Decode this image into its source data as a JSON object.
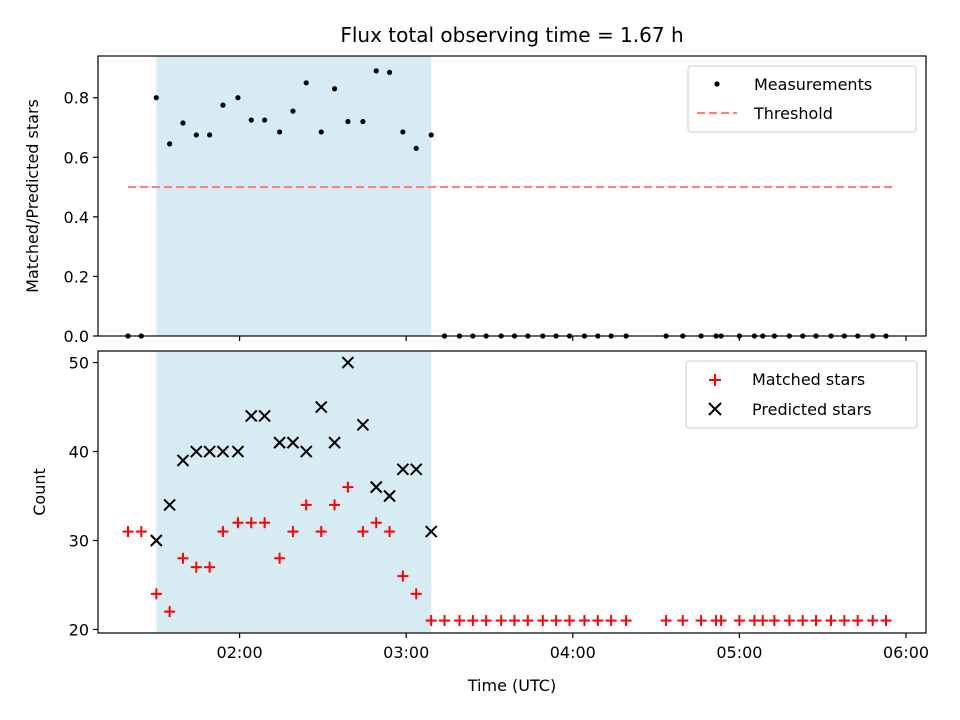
{
  "chart_data": {
    "title": "Flux total observing time = 1.67 h",
    "xlabel": "Time (UTC)",
    "x_unit": "hours UTC",
    "xlim": [
      1.15,
      6.12
    ],
    "x_ticks": [
      {
        "value": 2.0,
        "label": "02:00"
      },
      {
        "value": 3.0,
        "label": "03:00"
      },
      {
        "value": 4.0,
        "label": "04:00"
      },
      {
        "value": 5.0,
        "label": "05:00"
      },
      {
        "value": 6.0,
        "label": "06:00"
      }
    ],
    "shaded_span": {
      "x0": 1.5,
      "x1": 3.15,
      "color": "#add8e6"
    },
    "top": {
      "type": "scatter",
      "ylabel": "Matched/Predicted stars",
      "ylim": [
        0.0,
        0.94
      ],
      "y_ticks": [
        {
          "value": 0.0,
          "label": "0.0"
        },
        {
          "value": 0.2,
          "label": "0.2"
        },
        {
          "value": 0.4,
          "label": "0.4"
        },
        {
          "value": 0.6,
          "label": "0.6"
        },
        {
          "value": 0.8,
          "label": "0.8"
        }
      ],
      "legend": {
        "placement": "upper right",
        "entries": [
          {
            "label": "Measurements",
            "marker": "dot",
            "color": "#000000"
          },
          {
            "label": "Threshold",
            "marker": "dashed-line",
            "color": "#ff7f7f"
          }
        ]
      },
      "threshold": {
        "name": "Threshold",
        "value": 0.5,
        "x0": 1.33,
        "x1": 5.92,
        "color": "#ff7f7f"
      },
      "series": [
        {
          "name": "Measurements",
          "color": "#000000",
          "points": [
            [
              1.33,
              0
            ],
            [
              1.41,
              0
            ],
            [
              1.5,
              0.8
            ],
            [
              1.58,
              0.645
            ],
            [
              1.66,
              0.715
            ],
            [
              1.74,
              0.675
            ],
            [
              1.82,
              0.675
            ],
            [
              1.9,
              0.775
            ],
            [
              1.99,
              0.8
            ],
            [
              2.07,
              0.725
            ],
            [
              2.15,
              0.725
            ],
            [
              2.24,
              0.685
            ],
            [
              2.32,
              0.755
            ],
            [
              2.4,
              0.85
            ],
            [
              2.49,
              0.685
            ],
            [
              2.57,
              0.83
            ],
            [
              2.65,
              0.72
            ],
            [
              2.74,
              0.72
            ],
            [
              2.82,
              0.89
            ],
            [
              2.9,
              0.885
            ],
            [
              2.98,
              0.685
            ],
            [
              3.06,
              0.63
            ],
            [
              3.15,
              0.675
            ],
            [
              3.23,
              0
            ],
            [
              3.32,
              0
            ],
            [
              3.4,
              0
            ],
            [
              3.48,
              0
            ],
            [
              3.57,
              0
            ],
            [
              3.65,
              0
            ],
            [
              3.73,
              0
            ],
            [
              3.82,
              0
            ],
            [
              3.9,
              0
            ],
            [
              3.98,
              0
            ],
            [
              4.07,
              0
            ],
            [
              4.15,
              0
            ],
            [
              4.23,
              0
            ],
            [
              4.32,
              0
            ],
            [
              4.56,
              0
            ],
            [
              4.66,
              0
            ],
            [
              4.77,
              0
            ],
            [
              4.86,
              0
            ],
            [
              4.89,
              0
            ],
            [
              5.0,
              0
            ],
            [
              5.09,
              0
            ],
            [
              5.14,
              0
            ],
            [
              5.21,
              0
            ],
            [
              5.3,
              0
            ],
            [
              5.38,
              0
            ],
            [
              5.46,
              0
            ],
            [
              5.55,
              0
            ],
            [
              5.63,
              0
            ],
            [
              5.71,
              0
            ],
            [
              5.8,
              0
            ],
            [
              5.88,
              0
            ]
          ]
        }
      ]
    },
    "bottom": {
      "type": "scatter",
      "ylabel": "Count",
      "ylim": [
        19.6,
        51.3
      ],
      "y_ticks": [
        {
          "value": 20,
          "label": "20"
        },
        {
          "value": 30,
          "label": "30"
        },
        {
          "value": 40,
          "label": "40"
        },
        {
          "value": 50,
          "label": "50"
        }
      ],
      "legend": {
        "placement": "upper right",
        "entries": [
          {
            "label": "Matched stars",
            "marker": "plus",
            "color": "#ff0000"
          },
          {
            "label": "Predicted stars",
            "marker": "x",
            "color": "#000000"
          }
        ]
      },
      "series": [
        {
          "name": "Matched stars",
          "marker": "plus",
          "color": "#ff0000",
          "points": [
            [
              1.33,
              31
            ],
            [
              1.41,
              31
            ],
            [
              1.5,
              24
            ],
            [
              1.58,
              22
            ],
            [
              1.66,
              28
            ],
            [
              1.74,
              27
            ],
            [
              1.82,
              27
            ],
            [
              1.9,
              31
            ],
            [
              1.99,
              32
            ],
            [
              2.07,
              32
            ],
            [
              2.15,
              32
            ],
            [
              2.24,
              28
            ],
            [
              2.32,
              31
            ],
            [
              2.4,
              34
            ],
            [
              2.49,
              31
            ],
            [
              2.57,
              34
            ],
            [
              2.65,
              36
            ],
            [
              2.74,
              31
            ],
            [
              2.82,
              32
            ],
            [
              2.9,
              31
            ],
            [
              2.98,
              26
            ],
            [
              3.06,
              24
            ],
            [
              3.15,
              21
            ],
            [
              3.23,
              21
            ],
            [
              3.32,
              21
            ],
            [
              3.4,
              21
            ],
            [
              3.48,
              21
            ],
            [
              3.57,
              21
            ],
            [
              3.65,
              21
            ],
            [
              3.73,
              21
            ],
            [
              3.82,
              21
            ],
            [
              3.9,
              21
            ],
            [
              3.98,
              21
            ],
            [
              4.07,
              21
            ],
            [
              4.15,
              21
            ],
            [
              4.23,
              21
            ],
            [
              4.32,
              21
            ],
            [
              4.56,
              21
            ],
            [
              4.66,
              21
            ],
            [
              4.77,
              21
            ],
            [
              4.86,
              21
            ],
            [
              4.89,
              21
            ],
            [
              5.0,
              21
            ],
            [
              5.09,
              21
            ],
            [
              5.14,
              21
            ],
            [
              5.21,
              21
            ],
            [
              5.3,
              21
            ],
            [
              5.38,
              21
            ],
            [
              5.46,
              21
            ],
            [
              5.55,
              21
            ],
            [
              5.63,
              21
            ],
            [
              5.71,
              21
            ],
            [
              5.8,
              21
            ],
            [
              5.88,
              21
            ]
          ]
        },
        {
          "name": "Predicted stars",
          "marker": "x",
          "color": "#000000",
          "points": [
            [
              1.5,
              30
            ],
            [
              1.58,
              34
            ],
            [
              1.66,
              39
            ],
            [
              1.74,
              40
            ],
            [
              1.82,
              40
            ],
            [
              1.9,
              40
            ],
            [
              1.99,
              40
            ],
            [
              2.07,
              44
            ],
            [
              2.15,
              44
            ],
            [
              2.24,
              41
            ],
            [
              2.32,
              41
            ],
            [
              2.4,
              40
            ],
            [
              2.49,
              45
            ],
            [
              2.57,
              41
            ],
            [
              2.65,
              50
            ],
            [
              2.74,
              43
            ],
            [
              2.82,
              36
            ],
            [
              2.9,
              35
            ],
            [
              2.98,
              38
            ],
            [
              3.06,
              38
            ],
            [
              3.15,
              31
            ]
          ]
        }
      ]
    }
  }
}
